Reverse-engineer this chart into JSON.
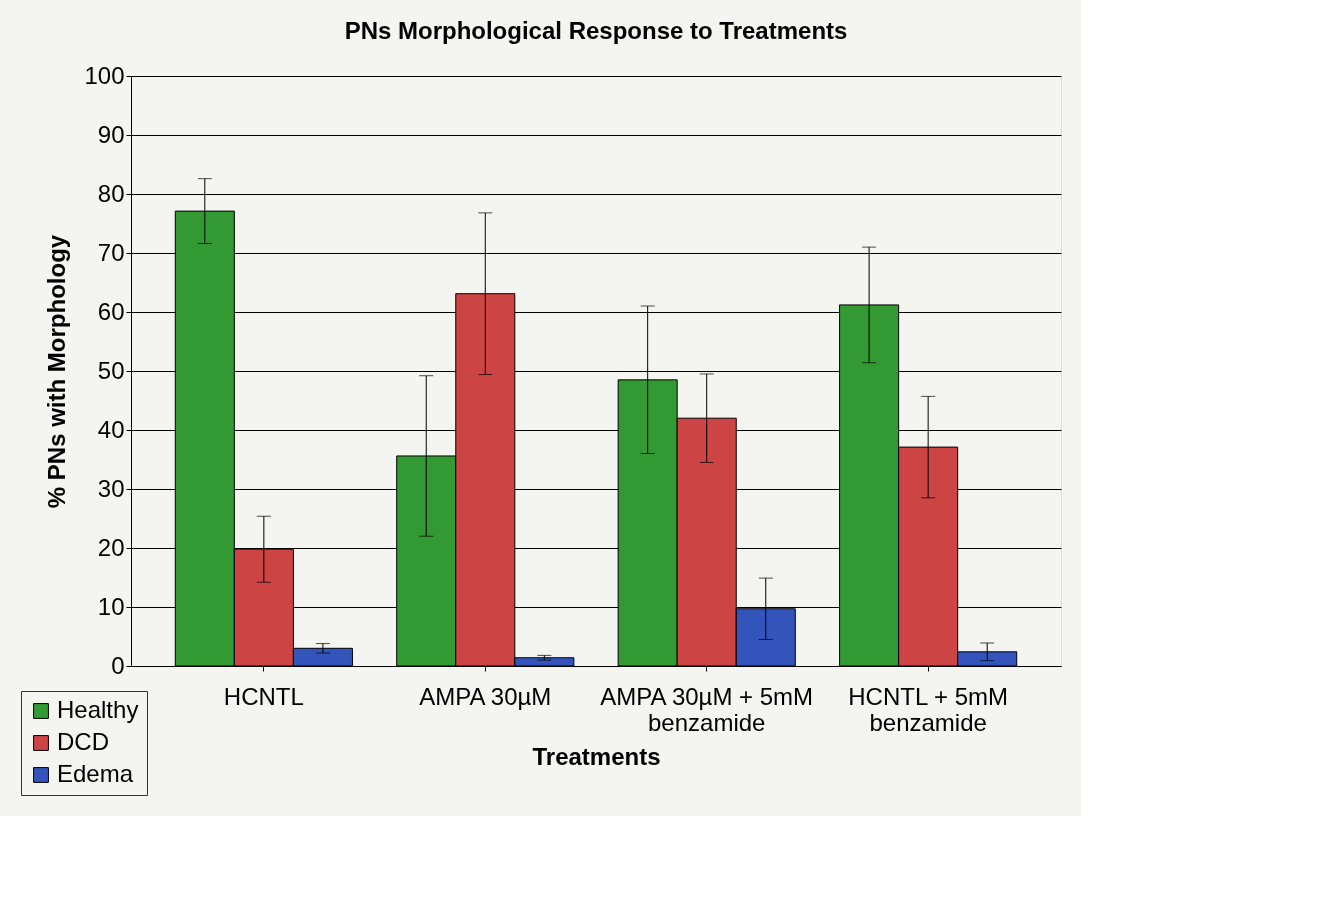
{
  "chart_data": {
    "type": "bar",
    "title": "PNs Morphological Response to Treatments",
    "xlabel": "Treatments",
    "ylabel": "% PNs with Morphology",
    "categories": [
      "HCNTL",
      "AMPA 30µM",
      "AMPA 30µM + 5mM benzamide",
      "HCNTL + 5mM benzamide"
    ],
    "series": [
      {
        "name": "Healthy",
        "color": "#339933",
        "values": [
          77.1,
          35.6,
          48.5,
          61.2
        ],
        "errors": [
          5.5,
          13.6,
          12.5,
          9.8
        ]
      },
      {
        "name": "DCD",
        "color": "#cc4444",
        "values": [
          19.8,
          63.1,
          42.0,
          37.1
        ],
        "errors": [
          5.6,
          13.7,
          7.5,
          8.6
        ]
      },
      {
        "name": "Edema",
        "color": "#3355bb",
        "values": [
          3.0,
          1.4,
          9.7,
          2.4
        ],
        "errors": [
          0.8,
          0.4,
          5.2,
          1.5
        ]
      }
    ],
    "ylim": [
      0,
      100
    ],
    "yticks": [
      0,
      10,
      20,
      30,
      40,
      50,
      60,
      70,
      80,
      90,
      100
    ],
    "grid": "y",
    "legend": "bottom left"
  }
}
